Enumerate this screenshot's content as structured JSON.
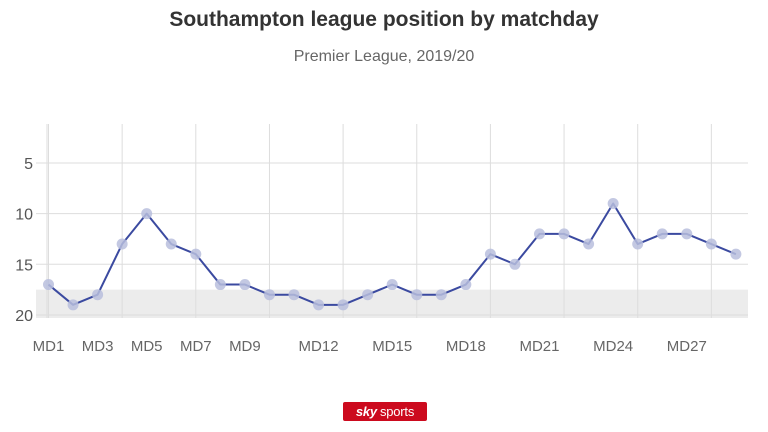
{
  "title": "Southampton league position by matchday",
  "subtitle": "Premier League, 2019/20",
  "logo": {
    "sky": "sky",
    "sports": "sports"
  },
  "colors": {
    "line": "#3b4aa0",
    "marker": "#b8bedd",
    "grid": "#dddddd",
    "relegation": "#ececec",
    "axis_text": "#666666"
  },
  "chart_data": {
    "type": "line",
    "x": [
      1,
      2,
      3,
      4,
      5,
      6,
      7,
      8,
      9,
      10,
      11,
      12,
      13,
      14,
      15,
      16,
      17,
      18,
      19,
      20,
      21,
      22,
      23,
      24,
      25,
      26,
      27,
      28,
      29
    ],
    "series": [
      {
        "values": [
          17,
          19,
          18,
          13,
          10,
          13,
          14,
          17,
          17,
          18,
          18,
          19,
          19,
          18,
          17,
          18,
          18,
          17,
          14,
          15,
          12,
          12,
          13,
          9,
          13,
          12,
          12,
          13,
          14
        ]
      }
    ],
    "xticks": [
      "MD1",
      "MD3",
      "MD5",
      "MD7",
      "MD9",
      "MD12",
      "MD15",
      "MD18",
      "MD21",
      "MD24",
      "MD27"
    ],
    "xtick_matchdays": [
      1,
      3,
      5,
      7,
      9,
      12,
      15,
      18,
      21,
      24,
      27
    ],
    "yticks": [
      5,
      10,
      15,
      20
    ],
    "ylim": [
      1,
      20
    ],
    "y_inverted": true,
    "relegation_zone": [
      18,
      20
    ],
    "grid": true
  }
}
